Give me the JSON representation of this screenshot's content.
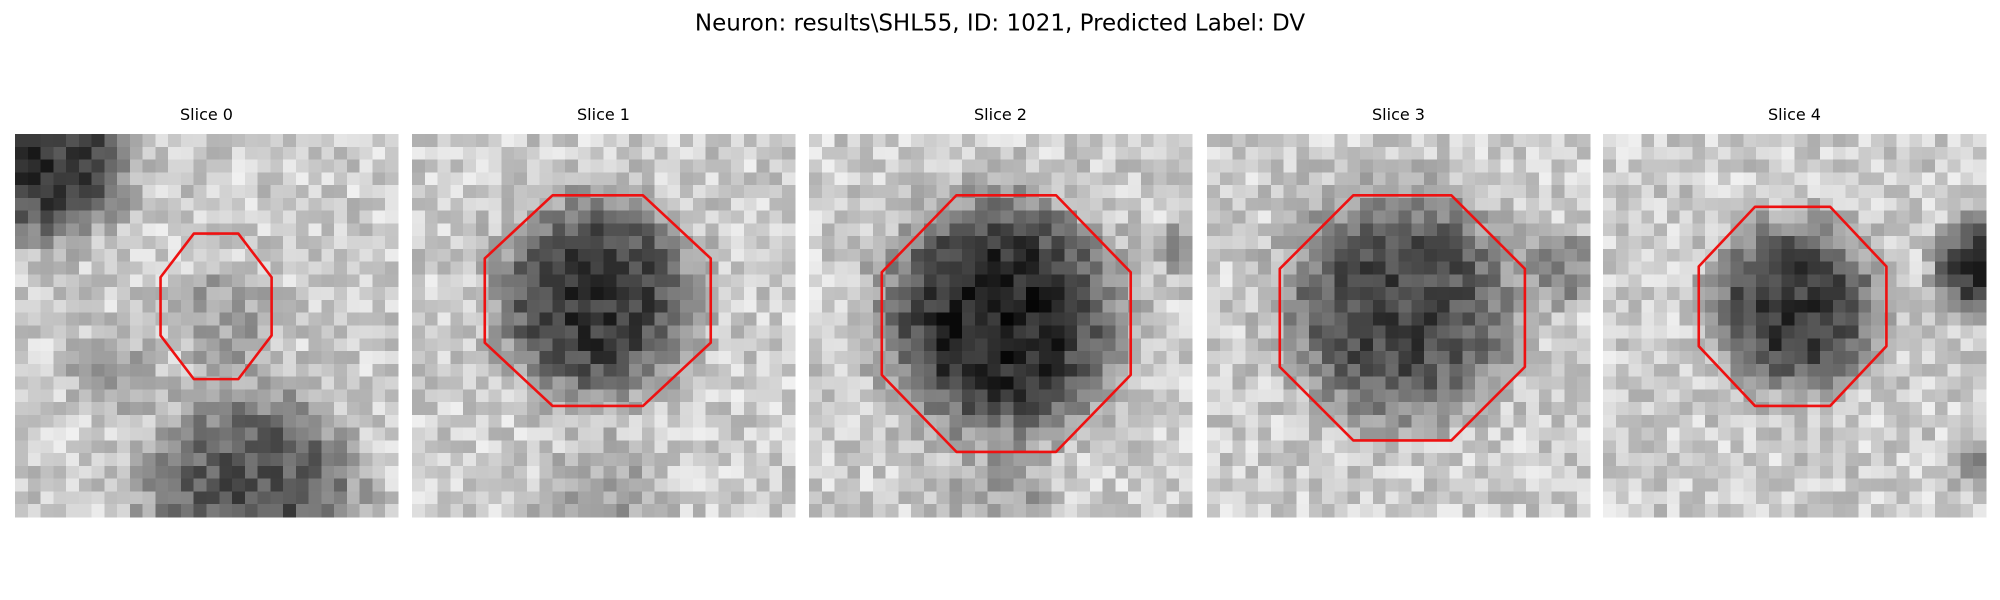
{
  "title": "Neuron: results\\SHL55, ID: 1021, Predicted Label: DV",
  "panels": [
    {
      "title": "Slice 0"
    },
    {
      "title": "Slice 1"
    },
    {
      "title": "Slice 2"
    },
    {
      "title": "Slice 3"
    },
    {
      "title": "Slice 4"
    }
  ]
}
